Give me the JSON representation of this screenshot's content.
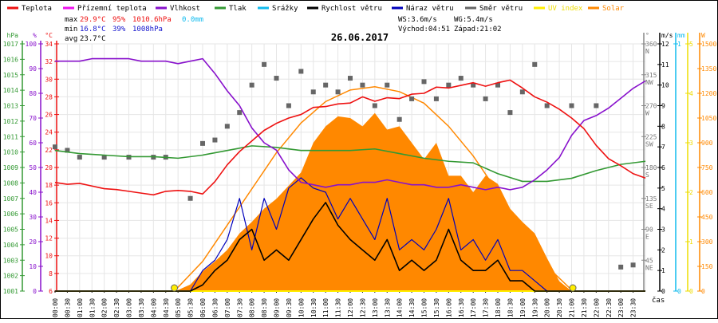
{
  "legend": [
    {
      "label": "Teplota",
      "color": "#ee1111"
    },
    {
      "label": "Přízemní teplota",
      "color": "#ee11ee"
    },
    {
      "label": "Vlhkost",
      "color": "#8811cc"
    },
    {
      "label": "Tlak",
      "color": "#339933"
    },
    {
      "label": "Srážky",
      "color": "#11bbee"
    },
    {
      "label": "Rychlost větru",
      "color": "#000000"
    },
    {
      "label": "Náraz větru",
      "color": "#0000bb"
    },
    {
      "label": "Směr větru",
      "color": "#666666"
    },
    {
      "label": "UV index",
      "color": "#ffee00"
    },
    {
      "label": "Solar",
      "color": "#ff8800"
    }
  ],
  "stats": {
    "max_label": "max",
    "max_temp": "29.9°C",
    "max_hum": "95%",
    "max_press": "1010.6hPa",
    "max_rain": "0.0mm",
    "min_label": "min",
    "min_temp": "16.8°C",
    "min_hum": "39%",
    "min_press": "1008hPa",
    "avg_label": "avg",
    "avg_temp": "23.7°C",
    "ws": "WS:3.6m/s",
    "wg": "WG:5.4m/s",
    "sunrise": "Východ:04:51",
    "sunset": "Západ:21:02"
  },
  "colors": {
    "temp": "#ee1111",
    "hum": "#8811cc",
    "press": "#339933",
    "rain": "#11bbee",
    "wind": "#000000",
    "gust": "#0000bb",
    "dir": "#666666",
    "uv": "#ffee00",
    "solar": "#ff8800",
    "grid": "#e6e6e6"
  },
  "chart_data": {
    "type": "line",
    "title": "26.06.2017",
    "xlabel": "čas",
    "x_range_hours": [
      0,
      24
    ],
    "x_tick_labels": [
      "00:00",
      "00:30",
      "01:00",
      "01:30",
      "02:00",
      "02:30",
      "03:00",
      "03:30",
      "04:00",
      "04:30",
      "05:00",
      "05:30",
      "06:00",
      "06:30",
      "07:00",
      "07:30",
      "08:00",
      "08:30",
      "09:00",
      "09:30",
      "10:00",
      "10:30",
      "11:00",
      "11:30",
      "12:00",
      "12:30",
      "13:00",
      "13:30",
      "14:00",
      "14:30",
      "15:00",
      "15:30",
      "16:00",
      "16:30",
      "17:00",
      "17:30",
      "18:00",
      "18:30",
      "19:00",
      "19:30",
      "20:00",
      "20:30",
      "21:00",
      "21:30",
      "22:00",
      "22:30",
      "23:00",
      "23:30"
    ],
    "axes": {
      "pressure": {
        "unit": "hPa",
        "range": [
          1001,
          1017
        ],
        "ticks": [
          1001,
          1002,
          1003,
          1004,
          1005,
          1006,
          1007,
          1008,
          1009,
          1010,
          1011,
          1012,
          1013,
          1014,
          1015,
          1016,
          1017
        ]
      },
      "humidity": {
        "unit": "%",
        "range": [
          0,
          100
        ],
        "ticks": [
          0,
          10,
          20,
          30,
          40,
          50,
          60,
          70,
          80,
          90,
          100
        ]
      },
      "temperature": {
        "unit": "°C",
        "range": [
          6,
          34
        ],
        "ticks": [
          6,
          8,
          10,
          12,
          14,
          16,
          18,
          20,
          22,
          24,
          26,
          28,
          30,
          32,
          34
        ]
      },
      "direction": {
        "unit": "°",
        "range": [
          0,
          360
        ],
        "ticks": [
          {
            "v": 45,
            "l": "45",
            "c": "NE"
          },
          {
            "v": 90,
            "l": "90",
            "c": "E"
          },
          {
            "v": 135,
            "l": "135",
            "c": "SE"
          },
          {
            "v": 180,
            "l": "180",
            "c": "S"
          },
          {
            "v": 225,
            "l": "225",
            "c": "SW"
          },
          {
            "v": 270,
            "l": "270",
            "c": "W"
          },
          {
            "v": 315,
            "l": "315",
            "c": "NW"
          },
          {
            "v": 360,
            "l": "360",
            "c": "N"
          }
        ]
      },
      "wind": {
        "unit": "m/s",
        "range": [
          0,
          12
        ],
        "ticks": [
          0,
          1,
          2,
          3,
          4,
          5,
          6,
          7,
          8,
          9,
          10,
          11,
          12
        ]
      },
      "rain": {
        "unit": "mm",
        "range": [
          0,
          1
        ],
        "ticks": [
          0,
          1
        ]
      },
      "uv": {
        "unit": "",
        "range": [
          0,
          5
        ],
        "ticks": [
          0,
          1,
          2,
          3,
          4,
          5
        ]
      },
      "solar": {
        "unit": "W",
        "range": [
          0,
          1500
        ],
        "ticks": [
          0,
          150,
          300,
          450,
          600,
          750,
          900,
          1050,
          1200,
          1350,
          1500
        ]
      }
    },
    "series": [
      {
        "name": "Teplota",
        "axis": "temperature",
        "x": [
          0,
          0.5,
          1,
          1.5,
          2,
          2.5,
          3,
          3.5,
          4,
          4.5,
          5,
          5.5,
          6,
          6.5,
          7,
          7.5,
          8,
          8.5,
          9,
          9.5,
          10,
          10.5,
          11,
          11.5,
          12,
          12.5,
          13,
          13.5,
          14,
          14.5,
          15,
          15.5,
          16,
          16.5,
          17,
          17.5,
          18,
          18.5,
          19,
          19.5,
          20,
          20.5,
          21,
          21.5,
          22,
          22.5,
          23,
          23.5,
          24
        ],
        "values": [
          18.3,
          18.1,
          18.2,
          17.9,
          17.6,
          17.5,
          17.3,
          17.1,
          16.9,
          17.3,
          17.4,
          17.3,
          17.0,
          18.4,
          20.3,
          21.8,
          23.0,
          24.2,
          25.0,
          25.6,
          26.0,
          26.8,
          26.9,
          27.2,
          27.3,
          28.0,
          27.5,
          27.9,
          27.8,
          28.3,
          28.4,
          29.1,
          29.0,
          29.3,
          29.6,
          29.2,
          29.6,
          29.9,
          29.0,
          28.0,
          27.4,
          26.6,
          25.6,
          24.4,
          22.5,
          21.0,
          20.2,
          19.3,
          18.8
        ]
      },
      {
        "name": "Vlhkost",
        "axis": "humidity",
        "x": [
          0,
          0.5,
          1,
          1.5,
          2,
          2.5,
          3,
          3.5,
          4,
          4.5,
          5,
          5.5,
          6,
          6.5,
          7,
          7.5,
          8,
          8.5,
          9,
          9.5,
          10,
          10.5,
          11,
          11.5,
          12,
          12.5,
          13,
          13.5,
          14,
          14.5,
          15,
          15.5,
          16,
          16.5,
          17,
          17.5,
          18,
          18.5,
          19,
          19.5,
          20,
          20.5,
          21,
          21.5,
          22,
          22.5,
          23,
          23.5,
          24
        ],
        "values": [
          93,
          93,
          93,
          94,
          94,
          94,
          94,
          93,
          93,
          93,
          92,
          93,
          94,
          88,
          81,
          75,
          66,
          60,
          57,
          49,
          44,
          43,
          42,
          43,
          43,
          44,
          44,
          45,
          44,
          43,
          43,
          42,
          42,
          43,
          42,
          41,
          42,
          41,
          42,
          45,
          49,
          54,
          63,
          69,
          71,
          74,
          78,
          82,
          85
        ]
      },
      {
        "name": "Tlak",
        "axis": "pressure",
        "x": [
          0,
          1,
          2,
          3,
          4,
          5,
          6,
          7,
          8,
          9,
          10,
          11,
          12,
          13,
          14,
          15,
          16,
          17,
          18,
          19,
          20,
          21,
          22,
          23,
          24
        ],
        "values": [
          1010.1,
          1009.9,
          1009.8,
          1009.7,
          1009.7,
          1009.6,
          1009.8,
          1010.1,
          1010.4,
          1010.3,
          1010.1,
          1010.1,
          1010.1,
          1010.2,
          1009.9,
          1009.6,
          1009.4,
          1009.3,
          1008.6,
          1008.1,
          1008.1,
          1008.3,
          1008.8,
          1009.2,
          1009.4
        ]
      },
      {
        "name": "Rychlost větru",
        "axis": "wind",
        "x": [
          0,
          4.5,
          5.5,
          6,
          6.5,
          7,
          7.5,
          8,
          8.5,
          9,
          9.5,
          10,
          10.5,
          11,
          11.5,
          12,
          12.5,
          13,
          13.5,
          14,
          14.5,
          15,
          15.5,
          16,
          16.5,
          17,
          17.5,
          18,
          18.5,
          19,
          19.5,
          20,
          24
        ],
        "values": [
          0,
          0,
          0,
          0.3,
          1,
          1.5,
          2.5,
          3,
          1.5,
          2,
          1.5,
          2.5,
          3.5,
          4.3,
          3.2,
          2.5,
          2,
          1.5,
          2.5,
          1,
          1.5,
          1,
          1.5,
          3,
          1.5,
          1,
          1,
          1.5,
          0.5,
          0.5,
          0,
          0,
          0
        ]
      },
      {
        "name": "Náraz větru",
        "axis": "wind",
        "x": [
          0,
          4.5,
          5.5,
          6,
          6.5,
          7,
          7.5,
          8,
          8.5,
          9,
          9.5,
          10,
          10.5,
          11,
          11.5,
          12,
          12.5,
          13,
          13.5,
          14,
          14.5,
          15,
          15.5,
          16,
          16.5,
          17,
          17.5,
          18,
          18.5,
          19,
          19.5,
          20,
          24
        ],
        "values": [
          0,
          0,
          0,
          1,
          1.5,
          2.5,
          4.5,
          2,
          4.5,
          3,
          5,
          5.5,
          5,
          4.8,
          3.5,
          4.5,
          3.5,
          2.5,
          4.5,
          2,
          2.5,
          2,
          3,
          4.5,
          2,
          2.5,
          1.5,
          2.5,
          1,
          1,
          0.5,
          0,
          0
        ]
      },
      {
        "name": "Směr větru",
        "axis": "direction",
        "x": [
          0,
          0.5,
          1,
          2,
          3,
          4,
          4.5,
          5.5,
          6,
          6.5,
          7,
          7.5,
          8,
          8.5,
          9,
          9.5,
          10,
          10.5,
          11,
          11.5,
          12,
          12.5,
          13,
          13.5,
          14,
          14.5,
          15,
          15.5,
          16,
          16.5,
          17,
          17.5,
          18,
          18.5,
          19,
          19.5,
          20,
          21,
          22,
          23,
          23.5
        ],
        "values": [
          210,
          205,
          195,
          195,
          195,
          195,
          195,
          135,
          215,
          220,
          240,
          260,
          300,
          330,
          310,
          270,
          320,
          290,
          300,
          290,
          310,
          300,
          270,
          300,
          250,
          280,
          305,
          280,
          300,
          310,
          300,
          280,
          300,
          260,
          290,
          330,
          270,
          270,
          270,
          35,
          38
        ]
      },
      {
        "name": "Srážky",
        "axis": "rain",
        "x": [
          0,
          24
        ],
        "values": [
          0,
          0
        ]
      },
      {
        "name": "UV index",
        "axis": "uv",
        "x": [
          0,
          24
        ],
        "values": [
          0,
          0
        ]
      },
      {
        "name": "Solar",
        "axis": "solar",
        "note": "measured area",
        "x": [
          4.9,
          5.5,
          6,
          6.5,
          7,
          7.5,
          8,
          8.5,
          9,
          9.5,
          10,
          10.5,
          11,
          11.5,
          12,
          12.5,
          13,
          13.5,
          14,
          14.5,
          15,
          15.5,
          16,
          16.5,
          17,
          17.5,
          18,
          18.5,
          19,
          19.5,
          20,
          20.5,
          21
        ],
        "values": [
          0,
          40,
          120,
          180,
          250,
          350,
          420,
          500,
          560,
          640,
          720,
          900,
          1000,
          1060,
          1050,
          1000,
          1080,
          980,
          1000,
          900,
          800,
          900,
          700,
          700,
          600,
          700,
          650,
          500,
          420,
          350,
          200,
          60,
          0
        ]
      },
      {
        "name": "Solar max",
        "axis": "solar",
        "note": "theoretical curve",
        "x": [
          4.85,
          6,
          7,
          8,
          9,
          10,
          11,
          12,
          13,
          14,
          15,
          16,
          17,
          18,
          19,
          20,
          21.05
        ],
        "values": [
          0,
          180,
          400,
          620,
          840,
          1020,
          1150,
          1220,
          1240,
          1210,
          1140,
          1000,
          820,
          600,
          360,
          150,
          0
        ]
      }
    ]
  }
}
